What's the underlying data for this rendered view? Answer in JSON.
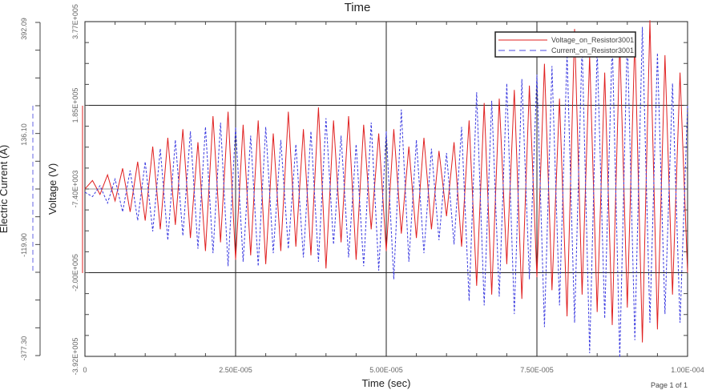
{
  "chart_data": {
    "type": "line",
    "title": "Time",
    "xlabel": "Time (sec)",
    "ylabel": "Voltage (V)",
    "y2label": "Electric Current (A)",
    "xlim": [
      0,
      0.0001
    ],
    "ylim": [
      -392000,
      377000
    ],
    "y2lim": [
      -377.3,
      392.09
    ],
    "x_ticks": [
      "0",
      "2.50E-005",
      "5.00E-005",
      "7.50E-005",
      "1.00E-004"
    ],
    "y_ticks": [
      "-3.92E+005",
      "-2.00E+005",
      "-7.40E+003",
      "1.85E+005",
      "3.77E+005"
    ],
    "y2_ticks": [
      "-377.30",
      "-119.90",
      "136.10",
      "392.09"
    ],
    "grid": true,
    "legend_position": "top-right",
    "x_step": 1.25e-06,
    "series": [
      {
        "name": "Voltage_on_Resistor3001",
        "axis": "left",
        "color": "#e02020",
        "dash": "solid",
        "values": [
          -7400,
          12000,
          -20000,
          25000,
          -35000,
          40000,
          -60000,
          55000,
          -80000,
          90000,
          -100000,
          110000,
          -90000,
          130000,
          -120000,
          100000,
          -150000,
          160000,
          -130000,
          170000,
          -170000,
          140000,
          -160000,
          150000,
          -180000,
          120000,
          -150000,
          170000,
          -140000,
          130000,
          -160000,
          180000,
          -190000,
          150000,
          -130000,
          160000,
          -170000,
          140000,
          -100000,
          120000,
          -150000,
          130000,
          -110000,
          90000,
          -120000,
          110000,
          -100000,
          80000,
          -70000,
          100000,
          -140000,
          150000,
          -230000,
          190000,
          -250000,
          200000,
          -180000,
          220000,
          -260000,
          230000,
          -210000,
          280000,
          -240000,
          200000,
          -300000,
          360000,
          -250000,
          300000,
          -290000,
          260000,
          -320000,
          330000,
          -280000,
          340000,
          -360000,
          380000,
          -330000,
          300000,
          -250000,
          260000,
          -200000
        ]
      },
      {
        "name": "Current_on_Resistor3001",
        "axis": "right",
        "color": "#3a3ae0",
        "dash": "dashed",
        "values": [
          0,
          -10,
          15,
          -25,
          30,
          -45,
          50,
          -65,
          70,
          -90,
          100,
          -110,
          120,
          -100,
          140,
          -130,
          150,
          -140,
          160,
          -170,
          150,
          -160,
          130,
          -170,
          150,
          -140,
          120,
          -130,
          110,
          -150,
          140,
          -160,
          170,
          -120,
          130,
          -150,
          110,
          -170,
          160,
          -180,
          140,
          -200,
          190,
          -160,
          120,
          -140,
          100,
          -110,
          90,
          -120,
          150,
          -250,
          230,
          -260,
          210,
          -240,
          250,
          -280,
          260,
          -200,
          270,
          -310,
          290,
          -260,
          320,
          -300,
          340,
          -370,
          330,
          -290,
          350,
          -380,
          360,
          -340,
          380,
          -300,
          320,
          -280,
          250,
          -300,
          200
        ]
      }
    ]
  },
  "footer": "Page 1 of 1"
}
